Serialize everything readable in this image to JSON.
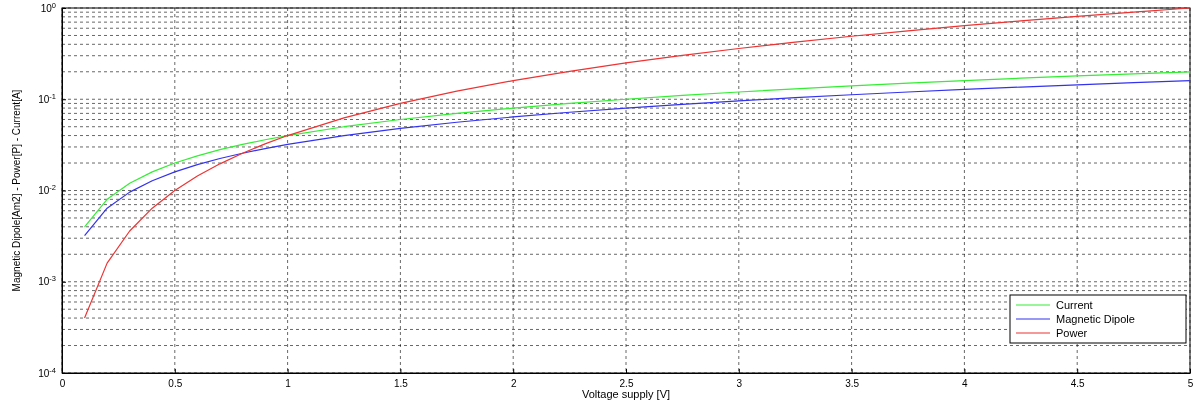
{
  "chart_data": {
    "type": "line",
    "xlabel": "Voltage supply [V]",
    "ylabel": "Magnetic Dipole[Am2] - Power[P] - Current[A]",
    "x": [
      0.1,
      0.2,
      0.3,
      0.4,
      0.5,
      0.6,
      0.7,
      0.8,
      0.9,
      1.0,
      1.25,
      1.5,
      1.75,
      2.0,
      2.25,
      2.5,
      2.75,
      3.0,
      3.25,
      3.5,
      3.75,
      4.0,
      4.25,
      4.5,
      4.75,
      5.0
    ],
    "series": [
      {
        "name": "Current",
        "color": "#33ee33",
        "values": [
          0.004,
          0.008,
          0.012,
          0.016,
          0.02,
          0.024,
          0.028,
          0.032,
          0.036,
          0.04,
          0.05,
          0.06,
          0.07,
          0.08,
          0.09,
          0.1,
          0.11,
          0.12,
          0.13,
          0.14,
          0.15,
          0.16,
          0.17,
          0.18,
          0.19,
          0.2
        ]
      },
      {
        "name": "Magnetic Dipole",
        "color": "#3333ee",
        "values": [
          0.0032,
          0.0064,
          0.0096,
          0.0128,
          0.016,
          0.0192,
          0.0224,
          0.0256,
          0.0288,
          0.032,
          0.04,
          0.048,
          0.056,
          0.064,
          0.072,
          0.08,
          0.088,
          0.096,
          0.104,
          0.112,
          0.12,
          0.128,
          0.136,
          0.144,
          0.152,
          0.16
        ]
      },
      {
        "name": "Power",
        "color": "#ee3333",
        "values": [
          0.0004,
          0.0016,
          0.0036,
          0.0064,
          0.01,
          0.0144,
          0.0196,
          0.0256,
          0.0324,
          0.04,
          0.0625,
          0.09,
          0.1225,
          0.16,
          0.2025,
          0.25,
          0.3025,
          0.36,
          0.4225,
          0.49,
          0.5625,
          0.64,
          0.7225,
          0.81,
          0.9025,
          1.0
        ]
      }
    ],
    "xlim": [
      0,
      5
    ],
    "xticks": [
      0,
      0.5,
      1,
      1.5,
      2,
      2.5,
      3,
      3.5,
      4,
      4.5,
      5
    ],
    "ylim": [
      0.0001,
      1
    ],
    "yticks": [
      {
        "value": 0.0001,
        "label": "10$^{-4}$"
      },
      {
        "value": 0.001,
        "label": "10$^{-3}$"
      },
      {
        "value": 0.01,
        "label": "10$^{-2}$"
      },
      {
        "value": 0.1,
        "label": "10$^{-1}$"
      },
      {
        "value": 1,
        "label": "10$^{0}$"
      }
    ],
    "log": "y",
    "grid": true,
    "legend": "bottom right",
    "line_style": "solid",
    "marker": "none"
  }
}
